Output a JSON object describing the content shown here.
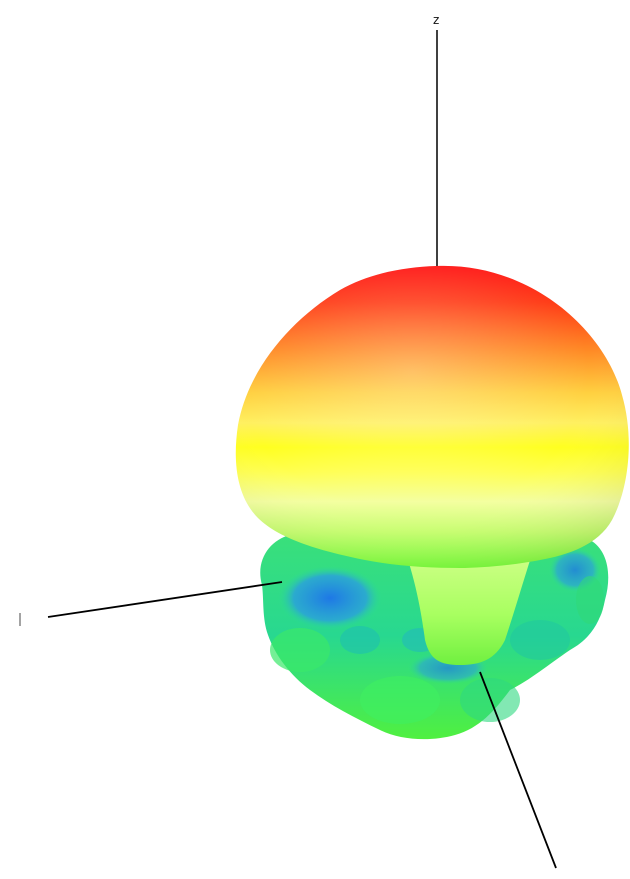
{
  "scene": {
    "type": "3d-radiation-pattern-plot",
    "background": "#ffffff",
    "axes": {
      "z": {
        "label": "z",
        "color": "#000000"
      },
      "x": {
        "label": "",
        "color": "#000000"
      },
      "y": {
        "label": "",
        "color": "#000000"
      }
    },
    "surface": {
      "colormap": [
        "#ff1a1a",
        "#ff7a1a",
        "#ffd21a",
        "#ffff1a",
        "#e8ff8a",
        "#5aff3a",
        "#2adc8a",
        "#1e90e6"
      ],
      "top_color": "#ff1a1a",
      "mid_color": "#ffff1a",
      "lower_color": "#5aff3a",
      "lobe_color": "#2adc8a",
      "deep_color": "#1e90e6"
    }
  }
}
